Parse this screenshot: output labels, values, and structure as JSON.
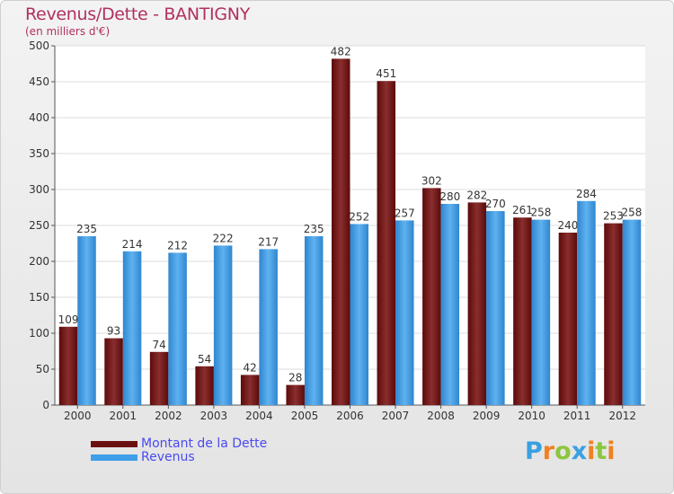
{
  "title": "Revenus/Dette - BANTIGNY",
  "subtitle": "(en milliers d'€)",
  "chart_data": {
    "type": "bar",
    "title": "Revenus/Dette - BANTIGNY",
    "ylabel": "(en milliers d'€)",
    "xlabel": "",
    "ylim": [
      0,
      500
    ],
    "yticks": [
      0,
      50,
      100,
      150,
      200,
      250,
      300,
      350,
      400,
      450,
      500
    ],
    "grid": "horizontal",
    "legend_position": "bottom-left",
    "categories": [
      "2000",
      "2001",
      "2002",
      "2003",
      "2004",
      "2005",
      "2006",
      "2007",
      "2008",
      "2009",
      "2010",
      "2011",
      "2012"
    ],
    "series": [
      {
        "name": "Montant de la Dette",
        "color": "#7a1a1a",
        "values": [
          109,
          93,
          74,
          54,
          42,
          28,
          482,
          451,
          302,
          282,
          261,
          240,
          253
        ]
      },
      {
        "name": "Revenus",
        "color": "#3f9fe8",
        "values": [
          235,
          214,
          212,
          222,
          217,
          235,
          252,
          257,
          280,
          270,
          258,
          284,
          258
        ]
      }
    ]
  },
  "legend": {
    "items": [
      {
        "label": "Montant de la Dette",
        "color": "#6b1010"
      },
      {
        "label": "Revenus",
        "color": "#3f9fe8"
      }
    ]
  },
  "logo": {
    "text": "Proxiti",
    "letters": [
      {
        "ch": "P",
        "color": "#3aa0e0"
      },
      {
        "ch": "r",
        "color": "#f08020"
      },
      {
        "ch": "o",
        "color": "#8cc63f"
      },
      {
        "ch": "x",
        "color": "#3aa0e0"
      },
      {
        "ch": "i",
        "color": "#f08020"
      },
      {
        "ch": "t",
        "color": "#8cc63f"
      },
      {
        "ch": "i",
        "color": "#f08020"
      }
    ]
  }
}
